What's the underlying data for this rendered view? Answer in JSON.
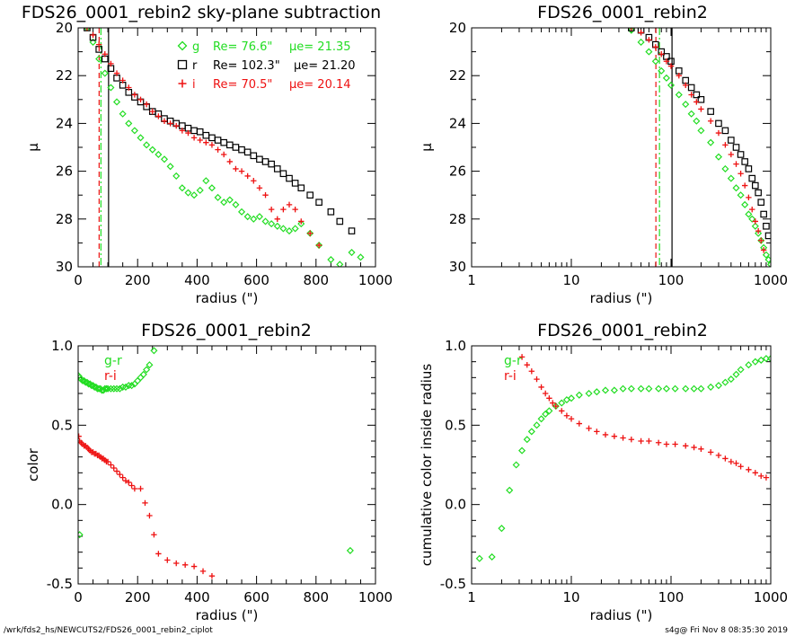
{
  "colors": {
    "g": "#22dd22",
    "r": "#000000",
    "i": "#ee1111"
  },
  "footer": {
    "left": "/wrk/fds2_hs/NEWCUTS2/FDS26_0001_rebin2_ciplot",
    "right": "s4g@  Fri Nov  8 08:35:30 2019"
  },
  "chart_data": [
    {
      "type": "scatter",
      "title": "FDS26_0001_rebin2 sky-plane subtraction",
      "xlabel": "radius (\")",
      "ylabel": "μ",
      "xlim": [
        0,
        1000
      ],
      "ylim": [
        30,
        20
      ],
      "xticks": [
        "0",
        "200",
        "400",
        "600",
        "800",
        "1000"
      ],
      "yticks": [
        "20",
        "22",
        "24",
        "26",
        "28",
        "30"
      ],
      "legend": [
        {
          "band": "g",
          "Re_label": "Re= 76.6\"",
          "mue_label": "μe= 21.35",
          "Re": 76.6,
          "mue": 21.35
        },
        {
          "band": "r",
          "Re_label": "Re= 102.3\"",
          "mue_label": "μe= 21.20",
          "Re": 102.3,
          "mue": 21.2
        },
        {
          "band": "i",
          "Re_label": "Re= 70.5\"",
          "mue_label": "μe= 20.14",
          "Re": 70.5,
          "mue": 20.14
        }
      ],
      "vlines": [
        {
          "band": "g",
          "x": 76.6,
          "dash": "dash-dot"
        },
        {
          "band": "i",
          "x": 70.5,
          "dash": "dash"
        },
        {
          "band": "r",
          "x": 102.3,
          "dash": "solid"
        }
      ],
      "series": [
        {
          "name": "g",
          "marker": "diamond",
          "x": [
            30,
            50,
            70,
            90,
            110,
            130,
            150,
            170,
            190,
            210,
            230,
            250,
            270,
            290,
            310,
            330,
            350,
            370,
            390,
            410,
            430,
            450,
            470,
            490,
            510,
            530,
            550,
            570,
            590,
            610,
            630,
            650,
            670,
            690,
            710,
            730,
            750,
            780,
            810,
            850,
            880,
            920,
            950
          ],
          "y": [
            20.0,
            20.6,
            21.3,
            21.9,
            22.5,
            23.1,
            23.6,
            24.0,
            24.3,
            24.6,
            24.9,
            25.1,
            25.3,
            25.5,
            25.8,
            26.2,
            26.7,
            26.9,
            27.0,
            26.8,
            26.4,
            26.7,
            27.1,
            27.3,
            27.2,
            27.4,
            27.7,
            27.9,
            28.0,
            27.9,
            28.1,
            28.2,
            28.3,
            28.4,
            28.5,
            28.4,
            28.2,
            28.6,
            29.1,
            29.7,
            29.9,
            29.4,
            29.6
          ]
        },
        {
          "name": "r",
          "marker": "square",
          "x": [
            30,
            50,
            70,
            90,
            110,
            130,
            150,
            170,
            190,
            210,
            230,
            250,
            270,
            290,
            310,
            330,
            350,
            370,
            390,
            410,
            430,
            450,
            470,
            490,
            510,
            530,
            550,
            570,
            590,
            610,
            630,
            650,
            670,
            690,
            710,
            730,
            750,
            780,
            810,
            850,
            880,
            920
          ],
          "y": [
            20.0,
            20.4,
            20.9,
            21.3,
            21.7,
            22.1,
            22.4,
            22.7,
            22.9,
            23.1,
            23.3,
            23.5,
            23.6,
            23.8,
            23.9,
            24.0,
            24.1,
            24.2,
            24.3,
            24.35,
            24.5,
            24.6,
            24.7,
            24.8,
            24.9,
            25.0,
            25.1,
            25.2,
            25.35,
            25.5,
            25.6,
            25.7,
            25.9,
            26.1,
            26.3,
            26.5,
            26.7,
            27.0,
            27.3,
            27.7,
            28.1,
            28.5
          ]
        },
        {
          "name": "i",
          "marker": "plus",
          "x": [
            30,
            50,
            70,
            90,
            110,
            130,
            150,
            170,
            190,
            210,
            230,
            250,
            270,
            290,
            310,
            330,
            350,
            370,
            390,
            410,
            430,
            450,
            470,
            490,
            510,
            530,
            550,
            570,
            590,
            610,
            630,
            650,
            670,
            690,
            710,
            730,
            750,
            780,
            810
          ],
          "y": [
            20.0,
            20.3,
            20.7,
            21.1,
            21.5,
            21.9,
            22.2,
            22.5,
            22.8,
            23.0,
            23.2,
            23.5,
            23.7,
            23.9,
            24.0,
            24.1,
            24.3,
            24.4,
            24.6,
            24.7,
            24.8,
            24.9,
            25.1,
            25.3,
            25.6,
            25.9,
            26.0,
            26.2,
            26.4,
            26.7,
            27.0,
            27.6,
            28.0,
            27.6,
            27.4,
            27.6,
            28.1,
            28.6,
            29.1
          ]
        }
      ]
    },
    {
      "type": "scatter",
      "title": "FDS26_0001_rebin2",
      "xlabel": "radius (\")",
      "ylabel": "μ",
      "xscale": "log",
      "xlim": [
        1,
        1000
      ],
      "ylim": [
        30,
        20
      ],
      "xticks": [
        "1",
        "10",
        "100",
        "1000"
      ],
      "yticks": [
        "20",
        "22",
        "24",
        "26",
        "28",
        "30"
      ],
      "vlines": [
        {
          "band": "g",
          "x": 76.6,
          "dash": "dash-dot"
        },
        {
          "band": "i",
          "x": 70.5,
          "dash": "dash"
        },
        {
          "band": "r",
          "x": 102.3,
          "dash": "solid"
        }
      ],
      "series": [
        {
          "name": "g",
          "marker": "diamond",
          "x": [
            40,
            50,
            60,
            70,
            80,
            90,
            100,
            120,
            140,
            160,
            180,
            200,
            250,
            300,
            350,
            400,
            450,
            500,
            550,
            600,
            650,
            700,
            750,
            800,
            850,
            900,
            950,
            1000
          ],
          "y": [
            20.1,
            20.6,
            21.0,
            21.4,
            21.8,
            22.1,
            22.4,
            22.8,
            23.2,
            23.6,
            23.9,
            24.3,
            24.8,
            25.4,
            25.9,
            26.3,
            26.7,
            27.0,
            27.4,
            27.8,
            28.0,
            28.3,
            28.6,
            28.9,
            29.2,
            29.5,
            29.7,
            29.9
          ]
        },
        {
          "name": "r",
          "marker": "square",
          "x": [
            40,
            50,
            60,
            70,
            80,
            90,
            100,
            120,
            140,
            160,
            180,
            200,
            250,
            300,
            350,
            400,
            450,
            500,
            550,
            600,
            650,
            700,
            750,
            800,
            850,
            900,
            950
          ],
          "y": [
            20.0,
            20.1,
            20.4,
            20.7,
            21.0,
            21.2,
            21.4,
            21.8,
            22.2,
            22.5,
            22.8,
            23.0,
            23.5,
            24.0,
            24.3,
            24.7,
            25.0,
            25.3,
            25.6,
            25.9,
            26.3,
            26.6,
            26.9,
            27.3,
            27.8,
            28.3,
            28.7
          ]
        },
        {
          "name": "i",
          "marker": "plus",
          "x": [
            40,
            50,
            60,
            70,
            80,
            90,
            100,
            120,
            140,
            160,
            180,
            200,
            250,
            300,
            350,
            400,
            450,
            500,
            550,
            600,
            650,
            700,
            750,
            800,
            850
          ],
          "y": [
            20.0,
            20.2,
            20.5,
            20.8,
            21.1,
            21.4,
            21.6,
            22.0,
            22.4,
            22.8,
            23.1,
            23.4,
            23.9,
            24.4,
            24.9,
            25.3,
            25.7,
            26.1,
            26.6,
            27.1,
            27.6,
            28.1,
            28.5,
            28.9,
            29.3
          ]
        }
      ]
    },
    {
      "type": "scatter",
      "title": "FDS26_0001_rebin2",
      "xlabel": "radius (\")",
      "ylabel": "color",
      "xlim": [
        0,
        1000
      ],
      "ylim": [
        -0.5,
        1.0
      ],
      "xticks": [
        "0",
        "200",
        "400",
        "600",
        "800",
        "1000"
      ],
      "yticks": [
        "1.0",
        "0.5",
        "0.0",
        "-0.5"
      ],
      "legend": [
        {
          "label": "g-r",
          "band": "g"
        },
        {
          "label": "r-i",
          "band": "i"
        }
      ],
      "series": [
        {
          "name": "g-r",
          "marker": "diamond",
          "x": [
            2,
            5,
            10,
            15,
            20,
            25,
            30,
            35,
            40,
            45,
            50,
            55,
            60,
            65,
            70,
            75,
            80,
            85,
            90,
            95,
            100,
            110,
            120,
            130,
            140,
            150,
            160,
            170,
            180,
            190,
            200,
            210,
            220,
            230,
            240,
            255,
            915,
            5
          ],
          "y": [
            0.81,
            0.8,
            0.79,
            0.78,
            0.78,
            0.77,
            0.77,
            0.76,
            0.76,
            0.75,
            0.75,
            0.74,
            0.74,
            0.73,
            0.73,
            0.73,
            0.72,
            0.72,
            0.73,
            0.73,
            0.73,
            0.73,
            0.73,
            0.73,
            0.73,
            0.74,
            0.74,
            0.75,
            0.75,
            0.76,
            0.78,
            0.8,
            0.82,
            0.85,
            0.88,
            0.97,
            -0.29,
            -0.19
          ]
        },
        {
          "name": "r-i",
          "marker": "plus",
          "x": [
            2,
            5,
            10,
            15,
            20,
            25,
            30,
            35,
            40,
            45,
            50,
            55,
            60,
            65,
            70,
            75,
            80,
            85,
            90,
            95,
            100,
            110,
            120,
            130,
            140,
            150,
            160,
            170,
            180,
            190,
            210,
            225,
            240,
            255,
            270,
            300,
            330,
            360,
            390,
            420,
            450
          ],
          "y": [
            0.43,
            0.4,
            0.39,
            0.38,
            0.37,
            0.37,
            0.36,
            0.35,
            0.34,
            0.33,
            0.33,
            0.32,
            0.32,
            0.31,
            0.31,
            0.3,
            0.29,
            0.29,
            0.28,
            0.27,
            0.27,
            0.25,
            0.23,
            0.21,
            0.19,
            0.17,
            0.15,
            0.14,
            0.12,
            0.1,
            0.1,
            0.01,
            -0.07,
            -0.19,
            -0.31,
            -0.35,
            -0.37,
            -0.38,
            -0.39,
            -0.42,
            -0.45
          ]
        }
      ]
    },
    {
      "type": "scatter",
      "title": "FDS26_0001_rebin2",
      "xlabel": "radius (\")",
      "ylabel": "cumulative color inside radius",
      "xscale": "log",
      "xlim": [
        1,
        1000
      ],
      "ylim": [
        -0.5,
        1.0
      ],
      "xticks": [
        "1",
        "10",
        "100",
        "1000"
      ],
      "yticks": [
        "1.0",
        "0.5",
        "0.0",
        "-0.5"
      ],
      "legend": [
        {
          "label": "g-r",
          "band": "g"
        },
        {
          "label": "r-i",
          "band": "i"
        }
      ],
      "series": [
        {
          "name": "g-r",
          "marker": "diamond",
          "x": [
            1.2,
            1.6,
            2.0,
            2.4,
            2.8,
            3.2,
            3.6,
            4.0,
            4.5,
            5.0,
            5.5,
            6.0,
            7.0,
            8.0,
            9,
            10,
            12,
            15,
            18,
            22,
            27,
            33,
            40,
            50,
            60,
            75,
            90,
            110,
            140,
            170,
            200,
            250,
            300,
            350,
            400,
            450,
            500,
            600,
            700,
            800,
            900,
            1000
          ],
          "y": [
            -0.34,
            -0.33,
            -0.15,
            0.09,
            0.25,
            0.34,
            0.41,
            0.46,
            0.5,
            0.54,
            0.57,
            0.59,
            0.62,
            0.64,
            0.66,
            0.67,
            0.69,
            0.7,
            0.71,
            0.72,
            0.72,
            0.73,
            0.73,
            0.73,
            0.73,
            0.73,
            0.73,
            0.73,
            0.73,
            0.73,
            0.73,
            0.74,
            0.75,
            0.77,
            0.79,
            0.82,
            0.85,
            0.88,
            0.9,
            0.91,
            0.92,
            0.92
          ]
        },
        {
          "name": "r-i",
          "marker": "plus",
          "x": [
            3.2,
            3.6,
            4.0,
            4.5,
            5.0,
            5.5,
            6.0,
            6.5,
            7,
            8,
            9,
            10,
            12,
            15,
            18,
            22,
            27,
            33,
            40,
            50,
            60,
            75,
            90,
            110,
            140,
            170,
            200,
            250,
            300,
            350,
            400,
            450,
            500,
            600,
            700,
            800,
            900
          ],
          "y": [
            0.93,
            0.88,
            0.84,
            0.79,
            0.74,
            0.7,
            0.67,
            0.64,
            0.62,
            0.59,
            0.56,
            0.54,
            0.51,
            0.48,
            0.46,
            0.44,
            0.43,
            0.42,
            0.41,
            0.4,
            0.4,
            0.39,
            0.38,
            0.38,
            0.37,
            0.36,
            0.35,
            0.33,
            0.31,
            0.29,
            0.27,
            0.26,
            0.24,
            0.22,
            0.2,
            0.18,
            0.17
          ]
        }
      ]
    }
  ]
}
